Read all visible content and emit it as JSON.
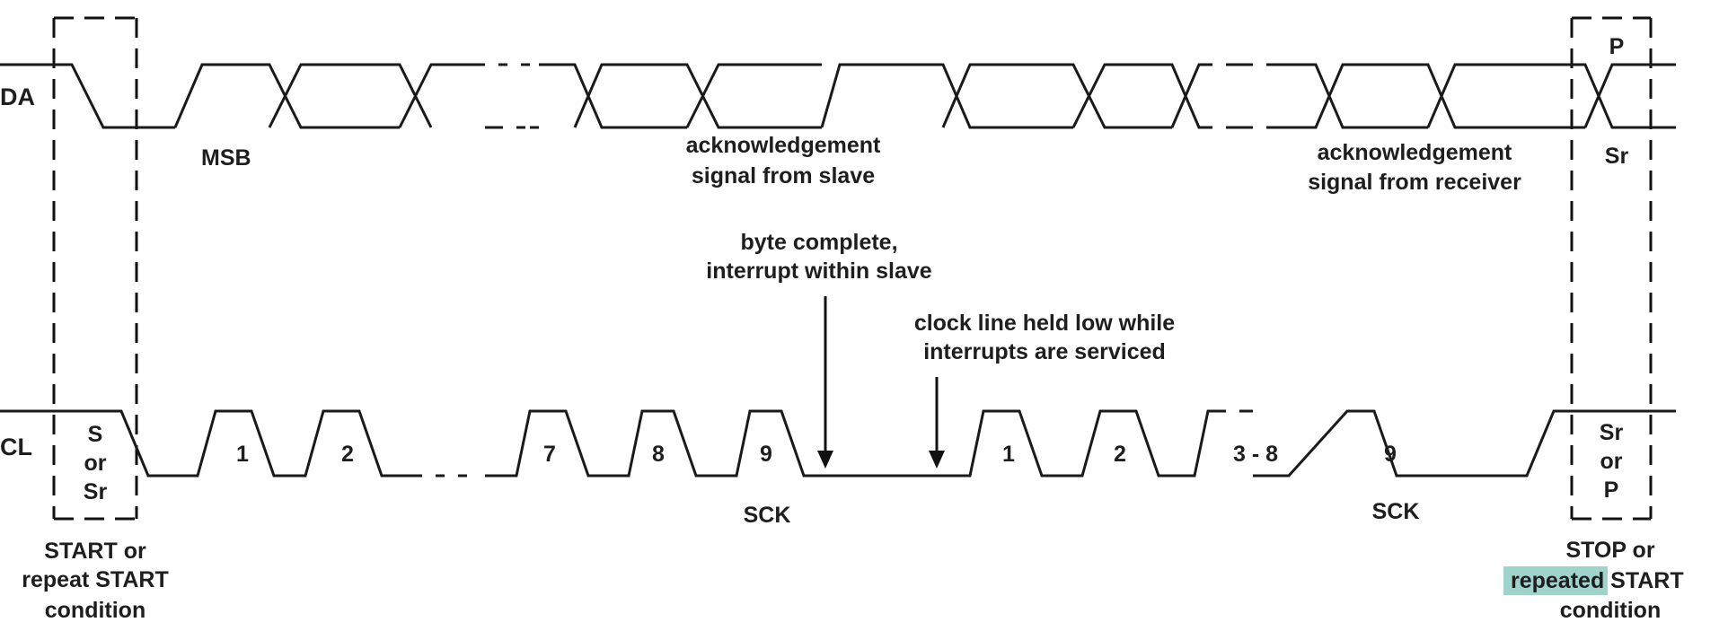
{
  "signals": {
    "sda": "DA",
    "scl": "CL"
  },
  "labels": {
    "msb": "MSB",
    "ack_slave_1": "acknowledgement",
    "ack_slave_2": "signal from slave",
    "ack_receiver_1": "acknowledgement",
    "ack_receiver_2": "signal from receiver",
    "byte_complete_1": "byte complete,",
    "byte_complete_2": "interrupt within slave",
    "clock_held_1": "clock line held low while",
    "clock_held_2": "interrupts are serviced",
    "sck_1": "SCK",
    "sck_2": "SCK",
    "p": "P",
    "sr": "Sr"
  },
  "start_box": [
    "S",
    "or",
    "Sr"
  ],
  "stop_box": [
    "Sr",
    "or",
    "P"
  ],
  "clock_pulses_1": [
    "1",
    "2",
    "7",
    "8",
    "9"
  ],
  "clock_pulses_2": [
    "1",
    "2",
    "3 - 8",
    "9"
  ],
  "start_caption": [
    "START or",
    "repeat START",
    "condition"
  ],
  "stop_caption": {
    "line1": "STOP or",
    "highlight": "repeated",
    "rest": " START",
    "line3": "condition"
  },
  "colors": {
    "line": "#1a1a1a",
    "highlight": "#9fd3cc"
  }
}
